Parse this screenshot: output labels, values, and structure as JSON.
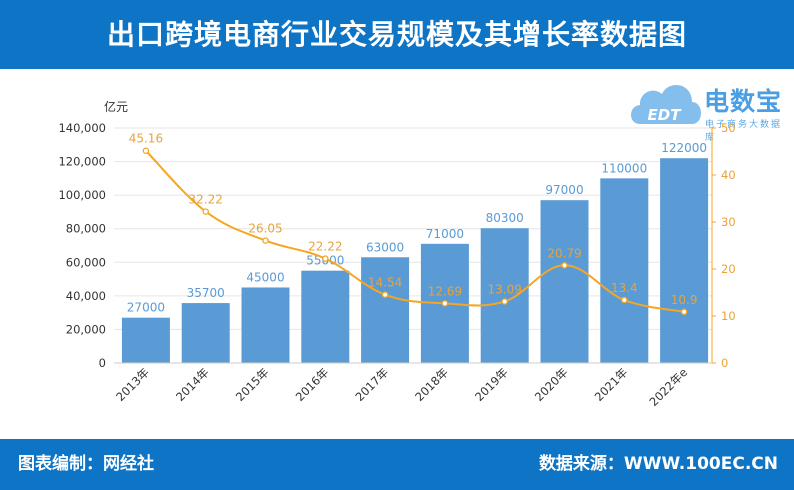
{
  "header": {
    "title": "出口跨境电商行业交易规模及其增长率数据图"
  },
  "footer": {
    "left": "图表编制：网经社",
    "right": "数据来源：WWW.100EC.CN"
  },
  "logo": {
    "main": "电数宝",
    "sub": "电子商务大数据库",
    "icon": "cloud-icon",
    "icon_text": "EDT"
  },
  "colors": {
    "bar": "#5b9bd5",
    "line": "#f5a623",
    "bar_label": "#5b9bd5",
    "line_label": "#e8a33b",
    "brand": "#0d74c6"
  },
  "chart_data": {
    "type": "bar",
    "categories": [
      "2013年",
      "2014年",
      "2015年",
      "2016年",
      "2017年",
      "2018年",
      "2019年",
      "2020年",
      "2021年",
      "2022年e"
    ],
    "y_unit_label": "亿元",
    "ylim": [
      0,
      140000
    ],
    "y_ticks": [
      "0",
      "20,000",
      "40,000",
      "60,000",
      "80,000",
      "100,000",
      "120,000",
      "140,000"
    ],
    "y2lim": [
      0,
      50
    ],
    "y2_ticks": [
      "0",
      "10",
      "20",
      "30",
      "40",
      "50"
    ],
    "series": [
      {
        "type": "bar",
        "axis": "left",
        "values": [
          27000,
          35700,
          45000,
          55000,
          63000,
          71000,
          80300,
          97000,
          110000,
          122000
        ],
        "labels": [
          "27000",
          "35700",
          "45000",
          "55000",
          "63000",
          "71000",
          "80300",
          "97000",
          "110000",
          "122000"
        ]
      },
      {
        "type": "line",
        "axis": "right",
        "smooth": true,
        "values": [
          45.16,
          32.22,
          26.05,
          22.22,
          14.54,
          12.69,
          13.09,
          20.79,
          13.4,
          10.9
        ],
        "labels": [
          "45.16",
          "32.22",
          "26.05",
          "22.22",
          "14.54",
          "12.69",
          "13.09",
          "20.79",
          "13.4",
          "10.9"
        ]
      }
    ],
    "grid": true,
    "legend": "none"
  }
}
